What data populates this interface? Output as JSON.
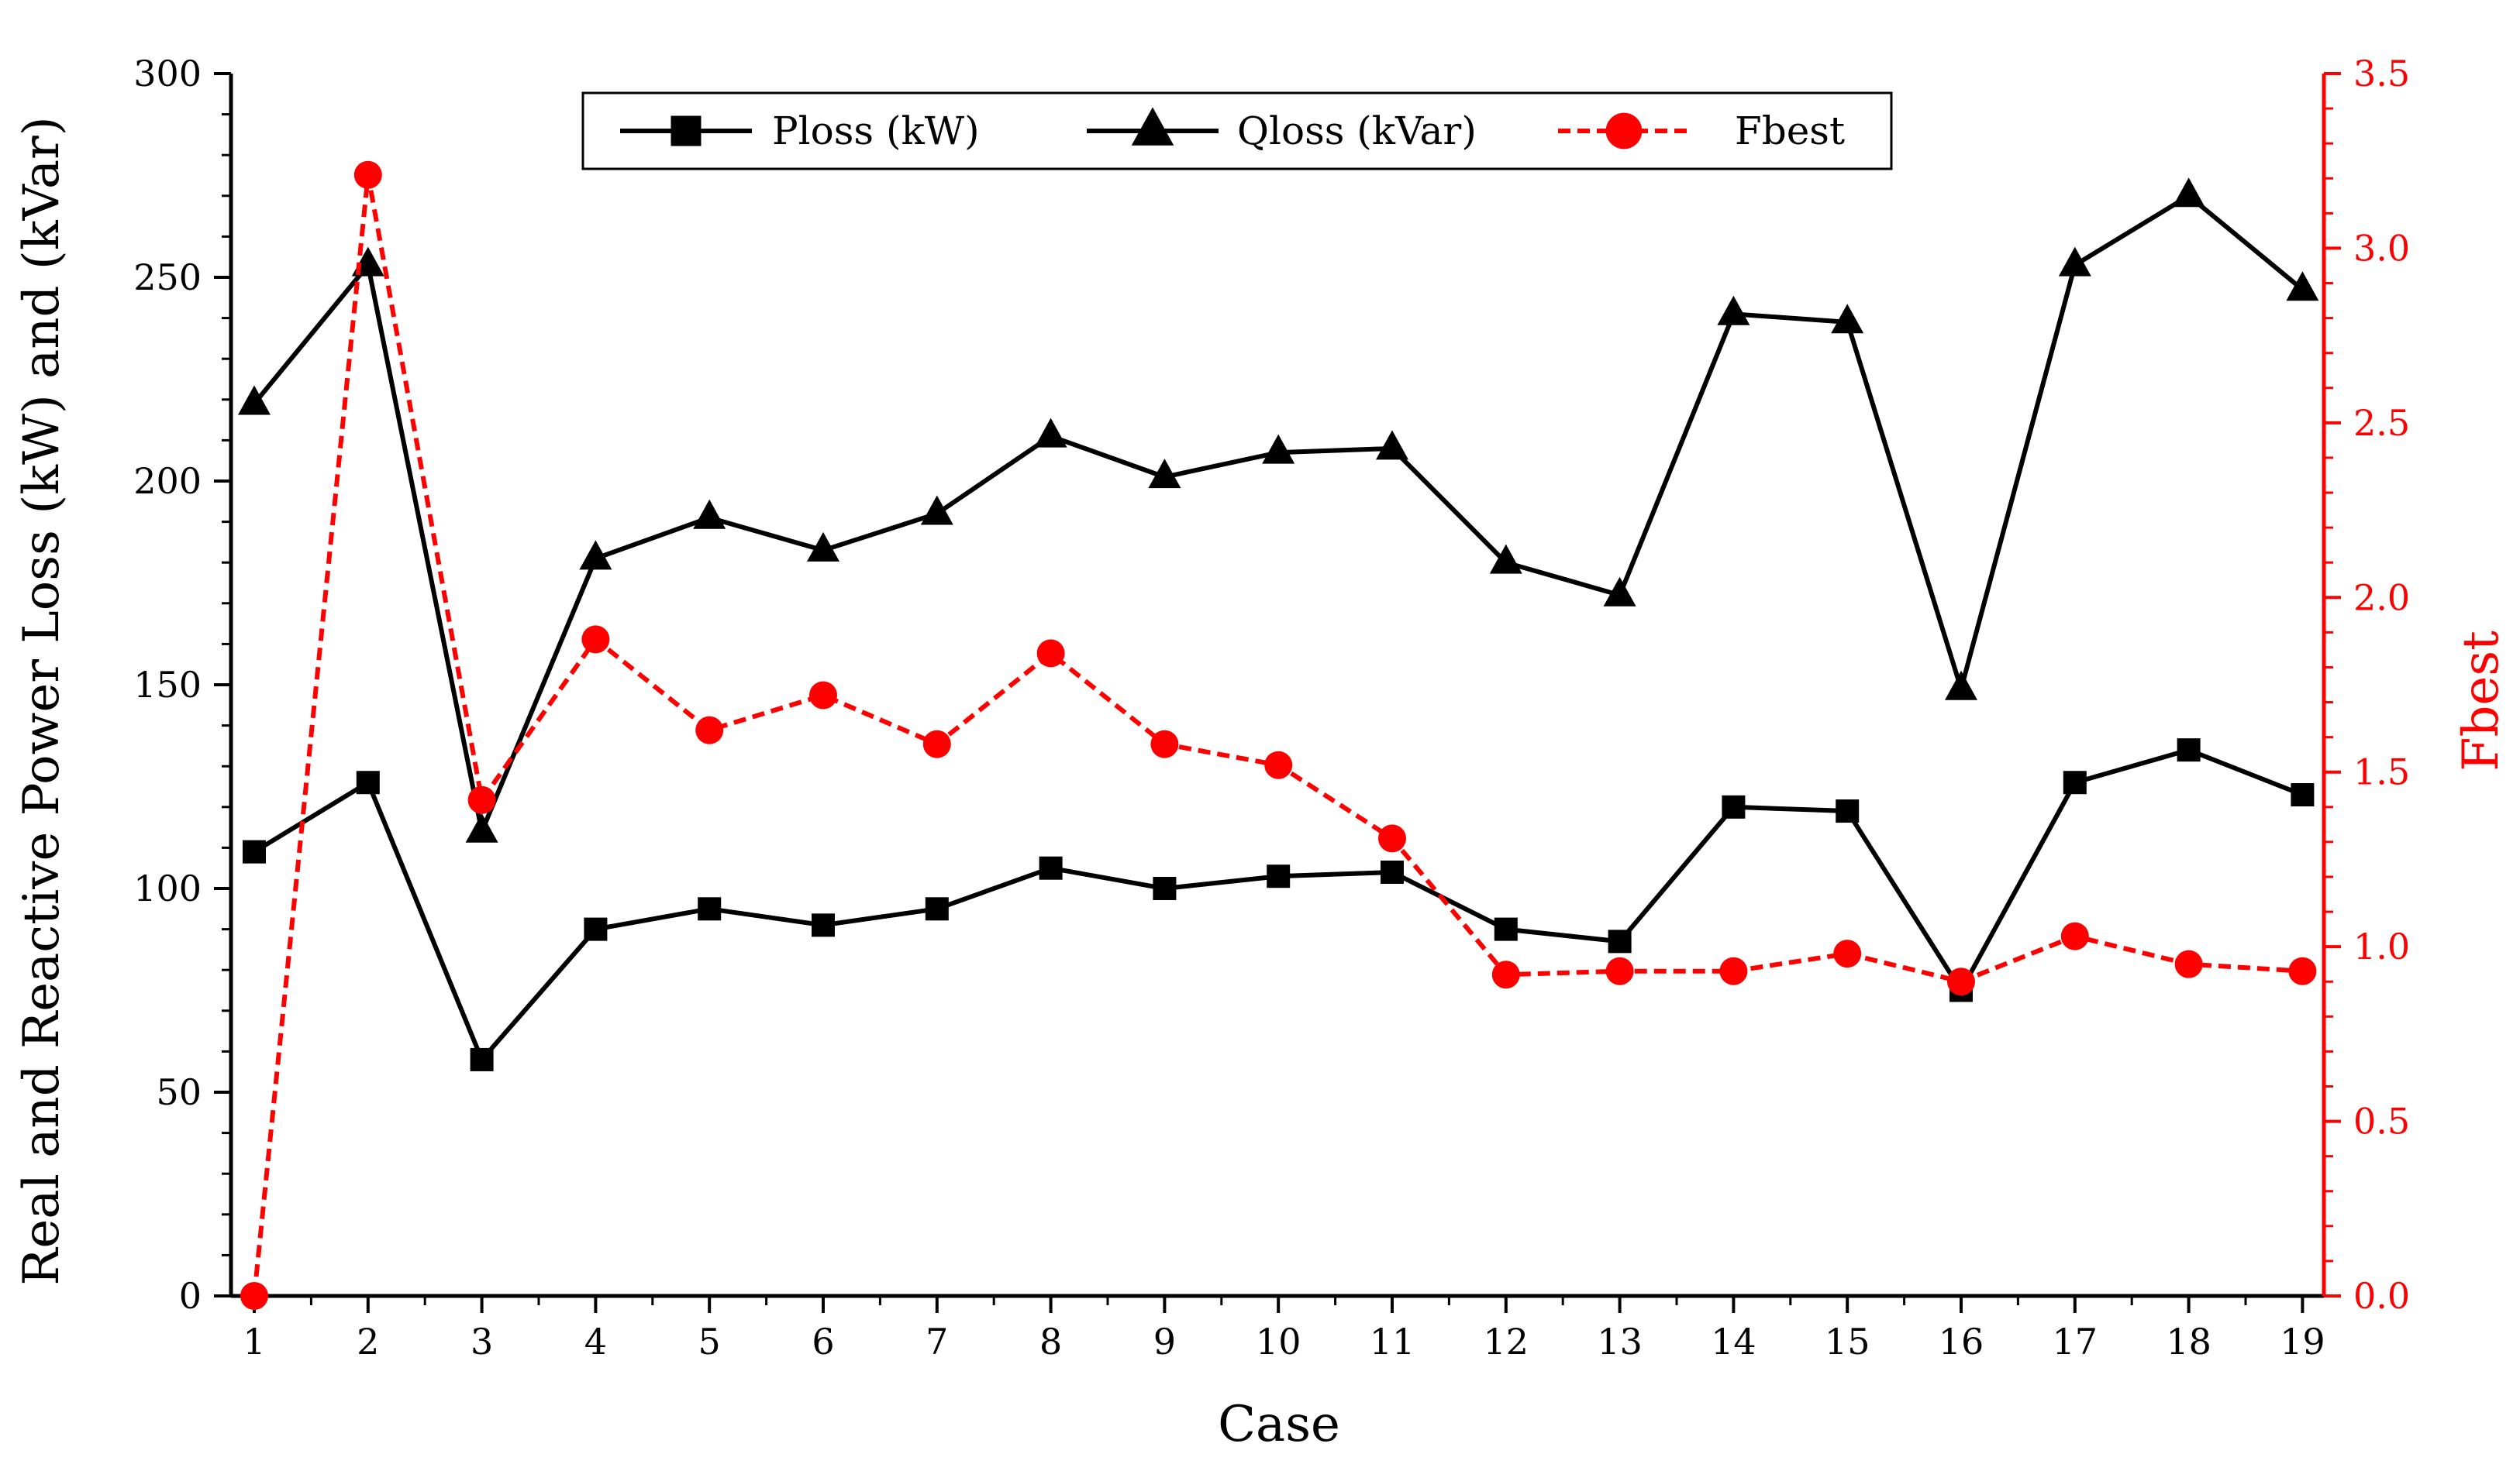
{
  "chart_data": {
    "type": "line",
    "title": "",
    "xlabel": "Case",
    "ylabel": "Real and Reactive Power Loss (kW) and (kVar)",
    "y2label": "Fbest",
    "categories": [
      "1",
      "2",
      "3",
      "4",
      "5",
      "6",
      "7",
      "8",
      "9",
      "10",
      "11",
      "12",
      "13",
      "14",
      "15",
      "16",
      "17",
      "18",
      "19"
    ],
    "ylim": [
      0,
      300
    ],
    "y2lim": [
      0,
      3.5
    ],
    "yticks": [
      "0",
      "50",
      "100",
      "150",
      "200",
      "250",
      "300"
    ],
    "y2ticks": [
      "0.0",
      "0.5",
      "1.0",
      "1.5",
      "2.0",
      "2.5",
      "3.0",
      "3.5"
    ],
    "grid": false,
    "legend_position": "top-center",
    "series": [
      {
        "name": "Ploss (kW)",
        "axis": "left",
        "color": "#000000",
        "marker": "square",
        "line": "solid",
        "values": [
          109,
          126,
          58,
          90,
          95,
          91,
          95,
          105,
          100,
          103,
          104,
          90,
          87,
          120,
          119,
          75,
          126,
          134,
          123
        ]
      },
      {
        "name": "Qloss (kVar)",
        "axis": "left",
        "color": "#000000",
        "marker": "triangle",
        "line": "solid",
        "values": [
          219,
          253,
          114,
          181,
          191,
          183,
          192,
          211,
          201,
          207,
          208,
          180,
          172,
          241,
          239,
          149,
          253,
          270,
          247
        ]
      },
      {
        "name": "Fbest",
        "axis": "right",
        "color": "#ff0000",
        "marker": "circle",
        "line": "dashed",
        "values": [
          0.0,
          3.21,
          1.42,
          1.88,
          1.62,
          1.72,
          1.58,
          1.84,
          1.58,
          1.52,
          1.31,
          0.92,
          0.93,
          0.93,
          0.98,
          0.9,
          1.03,
          0.95,
          0.93
        ]
      }
    ]
  }
}
